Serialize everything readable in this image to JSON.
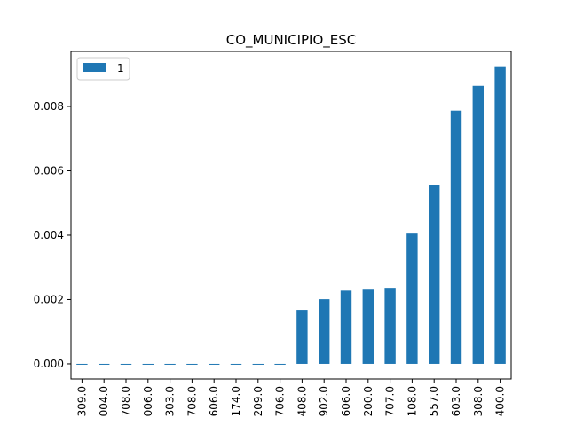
{
  "chart_data": {
    "type": "bar",
    "title": "CO_MUNICIPIO_ESC",
    "xlabel": "",
    "ylabel": "",
    "categories": [
      "309.0",
      "004.0",
      "708.0",
      "006.0",
      "303.0",
      "708.0",
      "606.0",
      "174.0",
      "209.0",
      "706.0",
      "408.0",
      "902.0",
      "606.0",
      "200.0",
      "707.0",
      "108.0",
      "557.0",
      "603.0",
      "308.0",
      "400.0"
    ],
    "series": [
      {
        "name": "1",
        "color": "#1f77b4",
        "values": [
          0.0,
          0.0,
          0.0,
          0.0,
          0.0,
          0.0,
          0.0,
          0.0,
          0.0,
          0.0,
          0.00168,
          0.00201,
          0.00228,
          0.00231,
          0.00234,
          0.00405,
          0.00557,
          0.00787,
          0.00864,
          0.00925
        ]
      }
    ],
    "ylim": [
      -0.00047,
      0.00971
    ],
    "yticks": [
      0.0,
      0.002,
      0.004,
      0.006,
      0.008
    ],
    "ytick_labels": [
      "0.000",
      "0.002",
      "0.004",
      "0.006",
      "0.008"
    ],
    "grid": false,
    "legend_position": "upper-left"
  }
}
